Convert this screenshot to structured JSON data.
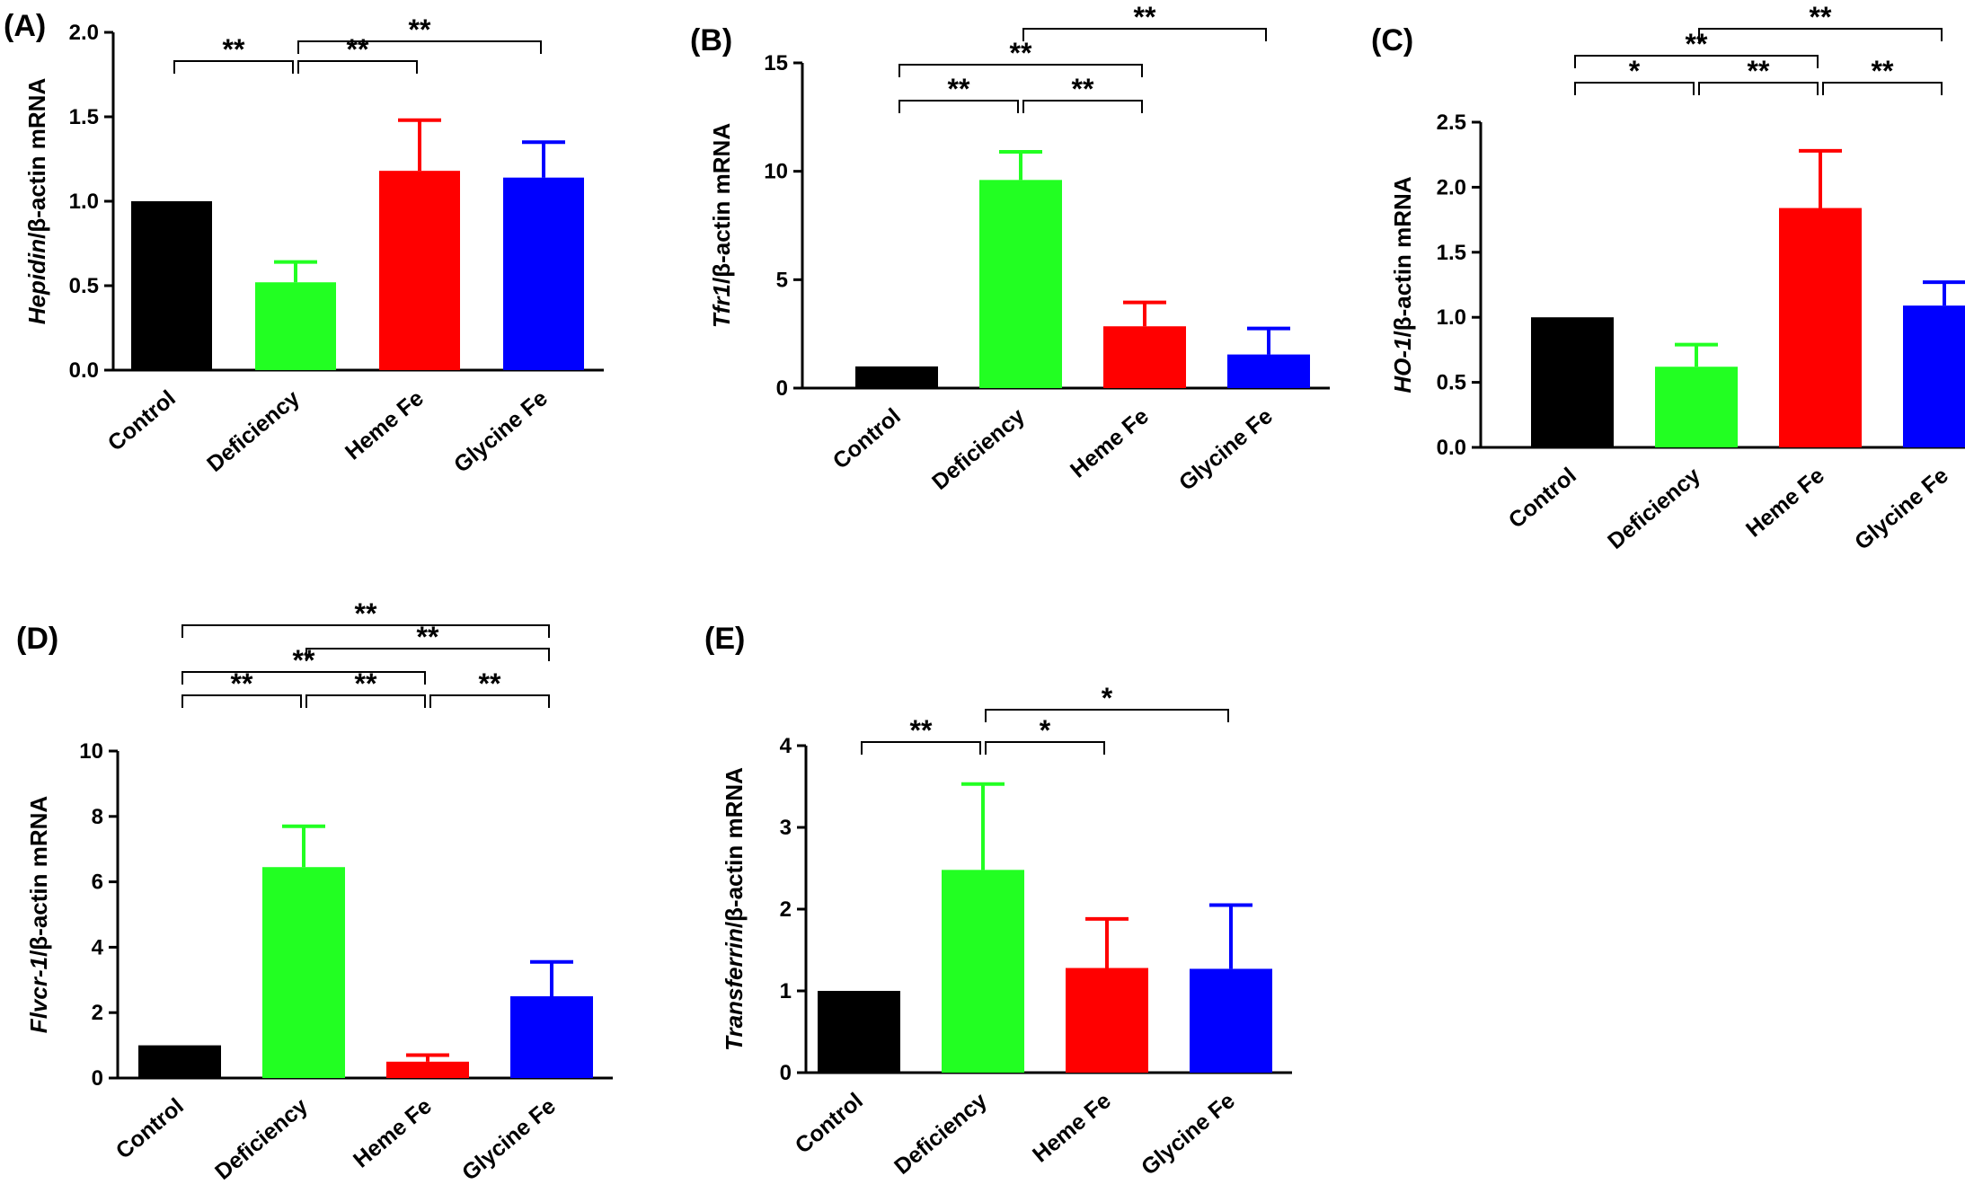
{
  "colors": {
    "Control": "#000000",
    "Deficiency": "#22ff22",
    "Heme Fe": "#ff0000",
    "Glycine Fe": "#0000ff",
    "axis": "#000000"
  },
  "chart_data": [
    {
      "panel": "(A)",
      "type": "bar",
      "categories": [
        "Control",
        "Deficiency",
        "Heme Fe",
        "Glycine Fe"
      ],
      "values": [
        1.0,
        0.52,
        1.18,
        1.14
      ],
      "errors": [
        0,
        0.12,
        0.3,
        0.21
      ],
      "ylim": [
        0,
        2.0
      ],
      "yticks": [
        "0.0",
        "0.5",
        "1.0",
        "1.5",
        "2.0"
      ],
      "ylabel_gene": "Hepidin",
      "ylabel_rest": "/β-actin mRNA",
      "significance": [
        {
          "from": 0,
          "to": 1,
          "label": "**"
        },
        {
          "from": 1,
          "to": 2,
          "label": "**"
        },
        {
          "from": 1,
          "to": 3,
          "label": "**"
        }
      ]
    },
    {
      "panel": "(B)",
      "type": "bar",
      "categories": [
        "Control",
        "Deficiency",
        "Heme Fe",
        "Glycine Fe"
      ],
      "values": [
        1.0,
        9.6,
        2.85,
        1.55
      ],
      "errors": [
        0,
        1.3,
        1.1,
        1.2
      ],
      "ylim": [
        0,
        15
      ],
      "yticks": [
        "0",
        "5",
        "10",
        "15"
      ],
      "ylabel_gene": "Tfr1",
      "ylabel_rest": "/β-actin mRNA",
      "significance": [
        {
          "from": 0,
          "to": 1,
          "label": "**"
        },
        {
          "from": 1,
          "to": 2,
          "label": "**"
        },
        {
          "from": 0,
          "to": 2,
          "label": "**"
        },
        {
          "from": 1,
          "to": 3,
          "label": "**"
        }
      ]
    },
    {
      "panel": "(C)",
      "type": "bar",
      "categories": [
        "Control",
        "Deficiency",
        "Heme Fe",
        "Glycine Fe"
      ],
      "values": [
        1.0,
        0.62,
        1.84,
        1.09
      ],
      "errors": [
        0,
        0.17,
        0.44,
        0.18
      ],
      "ylim": [
        0,
        2.5
      ],
      "yticks": [
        "0.0",
        "0.5",
        "1.0",
        "1.5",
        "2.0",
        "2.5"
      ],
      "ylabel_gene": "HO-1",
      "ylabel_rest": "/β-actin mRNA",
      "significance": [
        {
          "from": 0,
          "to": 1,
          "label": "*"
        },
        {
          "from": 1,
          "to": 2,
          "label": "**"
        },
        {
          "from": 2,
          "to": 3,
          "label": "**"
        },
        {
          "from": 0,
          "to": 2,
          "label": "**"
        },
        {
          "from": 1,
          "to": 3,
          "label": "**"
        }
      ]
    },
    {
      "panel": "(D)",
      "type": "bar",
      "categories": [
        "Control",
        "Deficiency",
        "Heme Fe",
        "Glycine Fe"
      ],
      "values": [
        1.0,
        6.45,
        0.5,
        2.5
      ],
      "errors": [
        0,
        1.25,
        0.2,
        1.05
      ],
      "ylim": [
        0,
        10
      ],
      "yticks": [
        "0",
        "2",
        "4",
        "6",
        "8",
        "10"
      ],
      "ylabel_gene": "Flvcr-1",
      "ylabel_rest": "/β-actin mRNA",
      "significance": [
        {
          "from": 0,
          "to": 1,
          "label": "**"
        },
        {
          "from": 1,
          "to": 2,
          "label": "**"
        },
        {
          "from": 2,
          "to": 3,
          "label": "**"
        },
        {
          "from": 0,
          "to": 2,
          "label": "**"
        },
        {
          "from": 1,
          "to": 3,
          "label": "**"
        },
        {
          "from": 0,
          "to": 3,
          "label": "**"
        }
      ]
    },
    {
      "panel": "(E)",
      "type": "bar",
      "categories": [
        "Control",
        "Deficiency",
        "Heme Fe",
        "Glycine Fe"
      ],
      "values": [
        1.0,
        2.48,
        1.28,
        1.27
      ],
      "errors": [
        0,
        1.05,
        0.6,
        0.78
      ],
      "ylim": [
        0,
        4
      ],
      "yticks": [
        "0",
        "1",
        "2",
        "3",
        "4"
      ],
      "ylabel_gene": "Transferrin",
      "ylabel_rest": "/β-actin mRNA",
      "significance": [
        {
          "from": 0,
          "to": 1,
          "label": "**"
        },
        {
          "from": 1,
          "to": 2,
          "label": "*"
        },
        {
          "from": 1,
          "to": 3,
          "label": "*"
        }
      ]
    }
  ]
}
